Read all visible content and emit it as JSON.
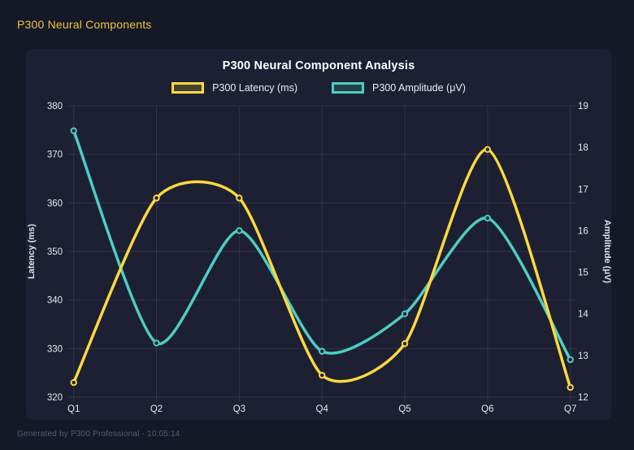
{
  "window": {
    "app_title": "P300 Neural Components",
    "footer": "Generated by P300 Professional - 10:05:14"
  },
  "colors": {
    "page_bg": "#151827",
    "panel_bg": "#1C2032",
    "latency_yellow": "#FFD93D",
    "amplitude_teal": "#4ECDC4",
    "grid": "rgba(255,255,255,0.09)",
    "tick_text": "#E6E9F0",
    "title_text": "#FFFFFF",
    "header_yellow": "#EEC53B"
  },
  "chart_data": {
    "type": "line",
    "title": "P300 Neural Component Analysis",
    "categories": [
      "Q1",
      "Q2",
      "Q3",
      "Q4",
      "Q5",
      "Q6",
      "Q7"
    ],
    "series": [
      {
        "name": "P300 Latency (ms)",
        "axis": "left",
        "color": "#FFD93D",
        "values": [
          323,
          361,
          361,
          324.5,
          331,
          371,
          322
        ]
      },
      {
        "name": "P300 Amplitude (μV)",
        "axis": "right",
        "color": "#4ECDC4",
        "values": [
          18.4,
          13.3,
          16.0,
          13.1,
          14.0,
          16.3,
          12.9
        ]
      }
    ],
    "left_axis": {
      "label": "Latency (ms)",
      "min": 320,
      "max": 380,
      "ticks": [
        380,
        370,
        360,
        350,
        340,
        330,
        320
      ]
    },
    "right_axis": {
      "label": "Amplitude (μV)",
      "min": 12,
      "max": 19,
      "ticks": [
        19,
        18,
        17,
        16,
        15,
        14,
        13,
        12
      ]
    },
    "legend_position": "top",
    "grid": true,
    "smooth": true
  }
}
